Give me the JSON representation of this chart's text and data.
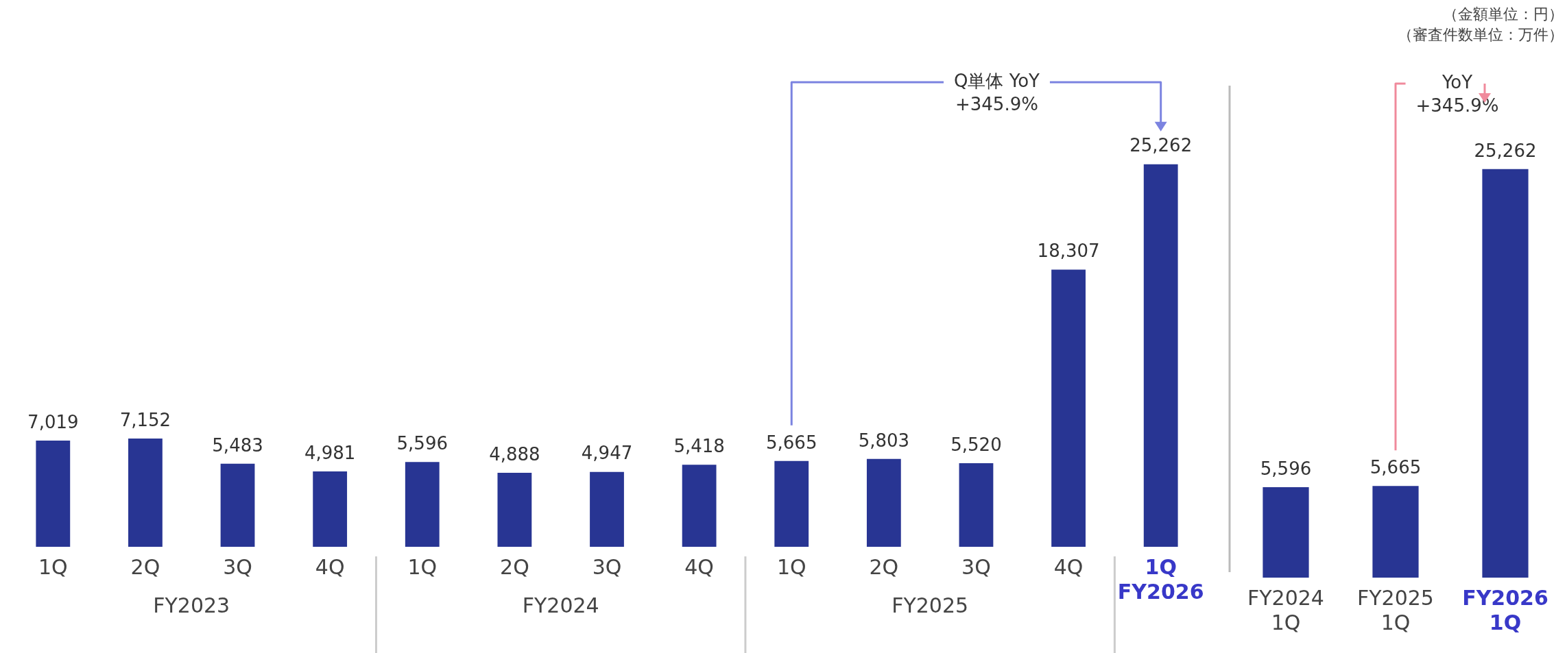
{
  "chart_data": [
    {
      "type": "bar",
      "categories": [
        "1Q",
        "2Q",
        "3Q",
        "4Q",
        "1Q",
        "2Q",
        "3Q",
        "4Q",
        "1Q",
        "2Q",
        "3Q",
        "4Q",
        "1Q\nFY2026"
      ],
      "values": [
        7019,
        7152,
        5483,
        4981,
        5596,
        4888,
        4947,
        5418,
        5665,
        5803,
        5520,
        18307,
        25262
      ],
      "color": "#283593",
      "value_labels": [
        "7,019",
        "7,152",
        "5,483",
        "4,981",
        "5,596",
        "4,888",
        "4,947",
        "5,418",
        "5,665",
        "5,803",
        "5,520",
        "18,307",
        "25,262"
      ],
      "grid": false,
      "legend": false,
      "annotations": [
        "FY2023",
        "FY2024",
        "FY2025",
        "Q単体 YoY\n+345.9%"
      ]
    },
    {
      "type": "bar",
      "categories": [
        "FY2024\n1Q",
        "FY2025\n1Q",
        "FY2026\n1Q"
      ],
      "values": [
        5596,
        5665,
        25262
      ],
      "color": "#283593",
      "value_labels": [
        "5,596",
        "5,665",
        "25,262"
      ],
      "grid": false,
      "legend": false,
      "annotations": [
        "YoY\n+345.9%",
        "（金額単位：円）",
        "（審査件数単位：万件）"
      ]
    }
  ]
}
